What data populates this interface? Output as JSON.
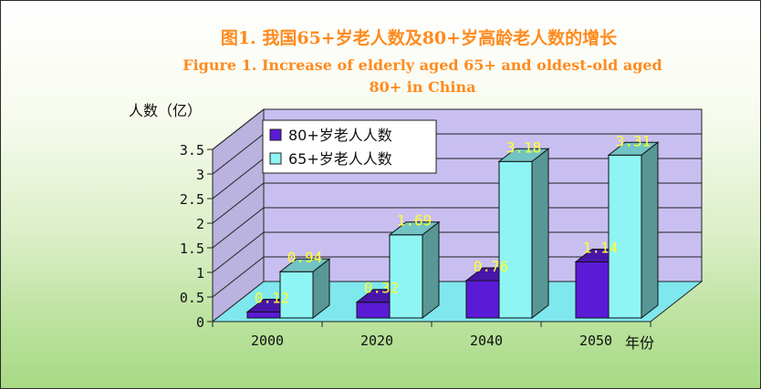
{
  "chart_data": {
    "type": "bar",
    "title": "图1. 我国65+岁老人数及80+岁高龄老人数的增长",
    "subtitle": "Figure 1. Increase of elderly aged 65+ and oldest-old aged 80+ in China",
    "subtitle_lines": [
      "Figure 1. Increase of elderly aged 65+ and oldest-old aged",
      "80+ in China"
    ],
    "ylabel": "人数（亿）",
    "xlabel": "年份",
    "categories": [
      "2000",
      "2020",
      "2040",
      "2050"
    ],
    "ylim": [
      0,
      3.5
    ],
    "yticks": [
      "0",
      "0.5",
      "1",
      "1.5",
      "2",
      "2.5",
      "3",
      "3.5"
    ],
    "legend_position": "top-left",
    "series": [
      {
        "name": "80+岁老人人数",
        "values": [
          0.12,
          0.32,
          0.76,
          1.14
        ],
        "labels": [
          "0.12",
          "0.32",
          "0.76",
          "1.14"
        ],
        "color": "#5a1ad6"
      },
      {
        "name": "65+岁老人人数",
        "values": [
          0.94,
          1.69,
          3.18,
          3.31
        ],
        "labels": [
          "0.94",
          "1.69",
          "3.18",
          "3.31"
        ],
        "color": "#8ff4f4"
      }
    ],
    "data_label_color": "#ffff33",
    "wall_color": "#c8bff0",
    "floor_color": "#7fe7ee"
  }
}
